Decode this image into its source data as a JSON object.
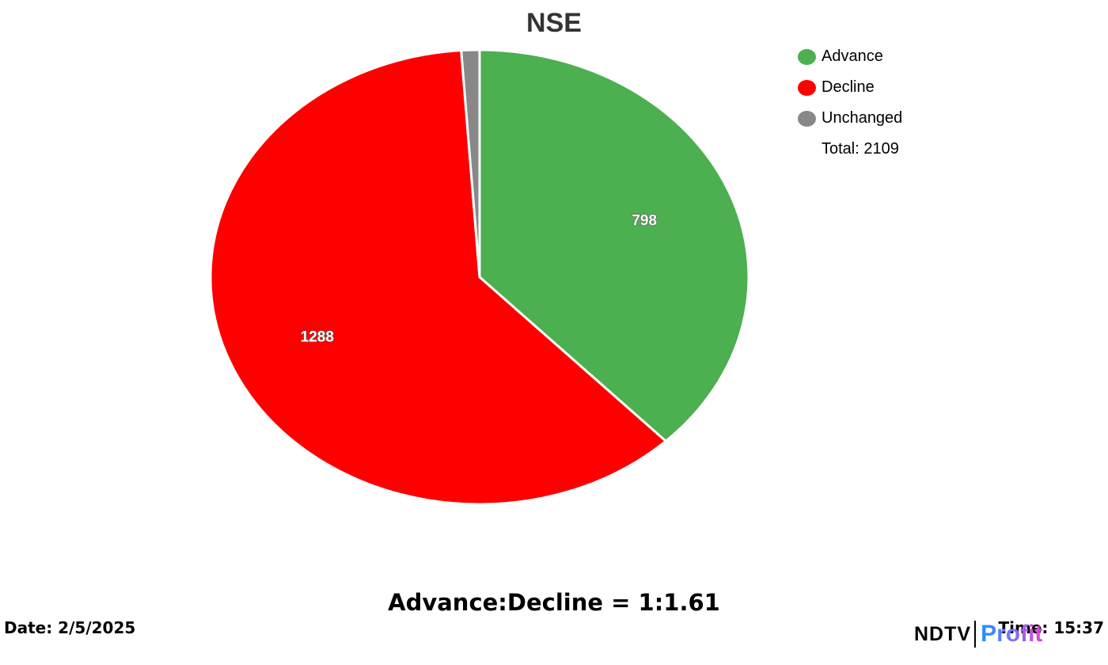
{
  "chart_data": {
    "type": "pie",
    "title": "NSE",
    "slices": [
      {
        "name": "Advance",
        "value": 798,
        "label": "798",
        "color": "#4caf50"
      },
      {
        "name": "Decline",
        "value": 1288,
        "label": "1288",
        "color": "#ff0000"
      },
      {
        "name": "Unchanged",
        "value": 23,
        "label": "",
        "color": "#888888"
      }
    ],
    "legend_placement": "top-right",
    "total_label": "Total: 2109"
  },
  "footer": {
    "ratio": "Advance:Decline = 1:1.61",
    "date": "Date: 2/5/2025",
    "time": "Time: 15:37"
  },
  "logo": {
    "ndtv": "NDTV",
    "profit": "Profit"
  }
}
